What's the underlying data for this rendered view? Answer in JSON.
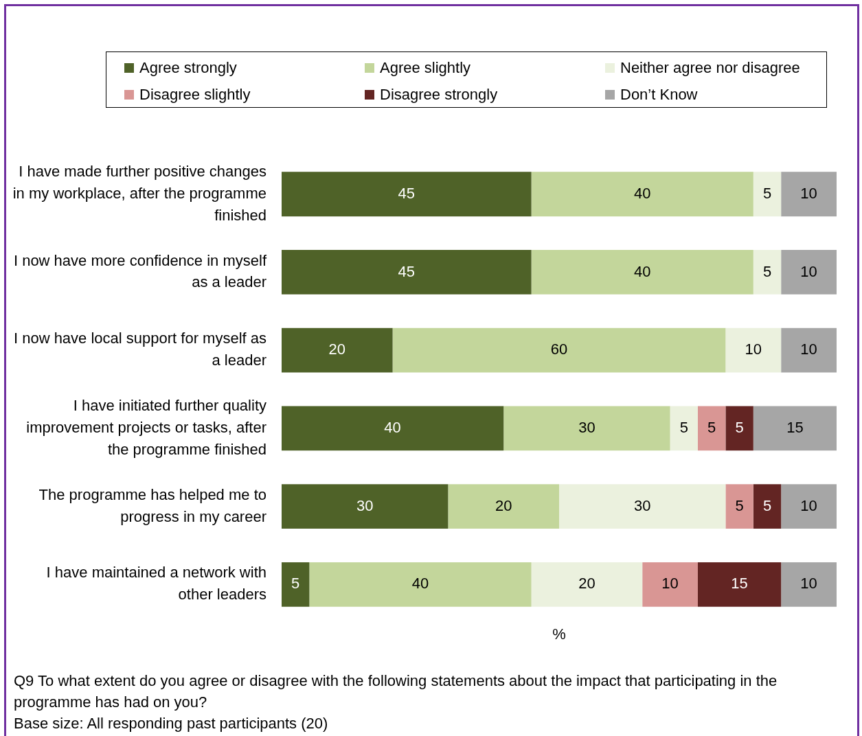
{
  "chart_data": {
    "type": "bar",
    "orientation": "horizontal",
    "stacked": true,
    "data_labels": true,
    "grid": false,
    "legend": "top",
    "tick_labels": "y",
    "xlabel": "%",
    "xlim": [
      0,
      100
    ],
    "categories": [
      "I have made further positive changes in my workplace, after the programme finished",
      "I now have more confidence in myself as a leader",
      "I now have local support for myself as a leader",
      "I have initiated further quality improvement projects or tasks, after the programme finished",
      "The programme has helped me to progress in my career",
      "I have maintained a network with other leaders"
    ],
    "series": [
      {
        "name": "Agree strongly",
        "color": "#4f6228",
        "values": [
          45,
          45,
          20,
          40,
          30,
          5
        ]
      },
      {
        "name": "Agree slightly",
        "color": "#c3d69b",
        "values": [
          40,
          40,
          60,
          30,
          20,
          40
        ]
      },
      {
        "name": "Neither agree nor disagree",
        "color": "#ebf1de",
        "values": [
          5,
          5,
          10,
          5,
          30,
          20
        ]
      },
      {
        "name": "Disagree slightly",
        "color": "#d99694",
        "values": [
          null,
          null,
          null,
          5,
          5,
          10
        ]
      },
      {
        "name": "Disagree strongly",
        "color": "#632523",
        "values": [
          null,
          null,
          null,
          5,
          5,
          15
        ]
      },
      {
        "name": "Don’t Know",
        "color": "#a6a6a6",
        "values": [
          10,
          10,
          10,
          15,
          10,
          10
        ]
      }
    ],
    "annotations": [
      "Q9  To what extent do you agree or disagree with the following statements about the impact that participating in the programme has had on you?",
      "Base size: All responding past participants (20)"
    ]
  }
}
